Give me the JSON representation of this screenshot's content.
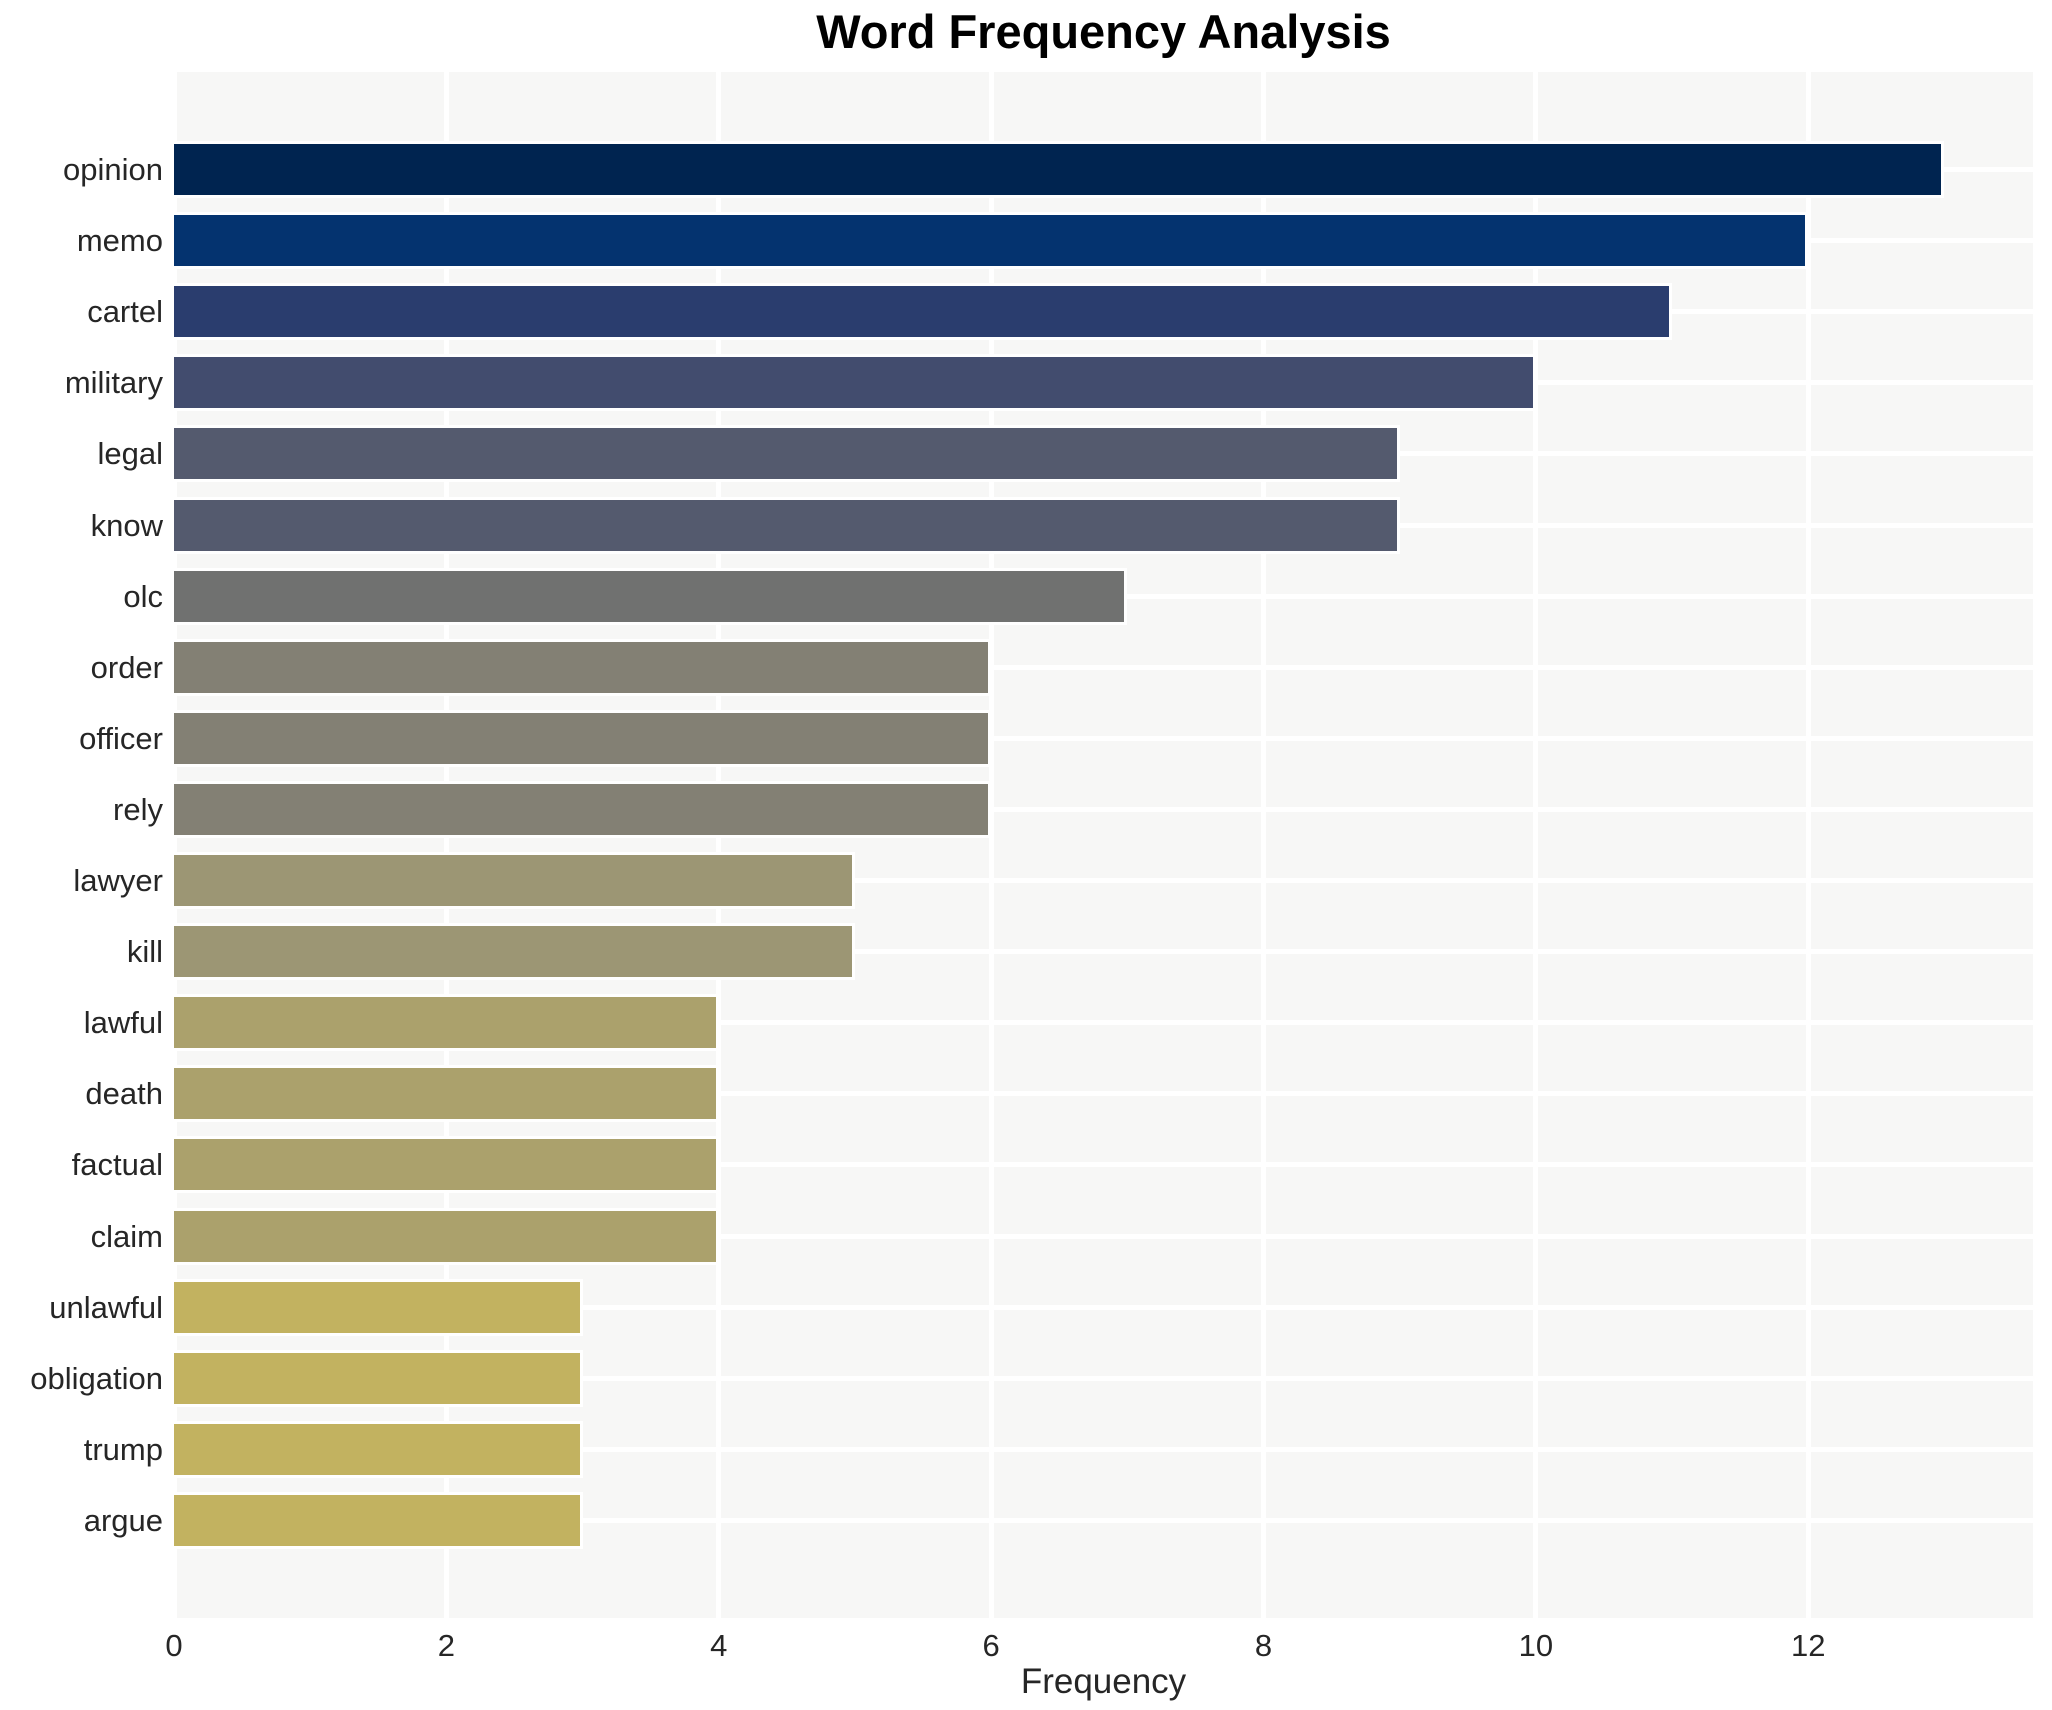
{
  "title": "Word Frequency Analysis",
  "chart_data": {
    "type": "bar",
    "orientation": "horizontal",
    "title": "Word Frequency Analysis",
    "xlabel": "Frequency",
    "ylabel": "",
    "categories": [
      "opinion",
      "memo",
      "cartel",
      "military",
      "legal",
      "know",
      "olc",
      "order",
      "officer",
      "rely",
      "lawyer",
      "kill",
      "lawful",
      "death",
      "factual",
      "claim",
      "unlawful",
      "obligation",
      "trump",
      "argue"
    ],
    "values": [
      13,
      12,
      11,
      10,
      9,
      9,
      7,
      6,
      6,
      6,
      5,
      5,
      4,
      4,
      4,
      4,
      3,
      3,
      3,
      3
    ],
    "bar_colors": [
      "#002450",
      "#04336f",
      "#2a3d6e",
      "#424c6e",
      "#545a6e",
      "#545a6e",
      "#707170",
      "#838074",
      "#838074",
      "#838074",
      "#9c9674",
      "#9c9674",
      "#aba16c",
      "#aba16c",
      "#aba16c",
      "#aba16c",
      "#c2b260",
      "#c2b260",
      "#c2b260",
      "#c2b260"
    ],
    "x_ticks": [
      0,
      2,
      4,
      6,
      8,
      10,
      12
    ],
    "xlim": [
      0,
      13.65
    ],
    "legend": "none",
    "grid": "on",
    "colors": {
      "panel_background": "#f7f7f6",
      "gridline": "#ffffff",
      "tick_text": "#262626",
      "title_text": "#000000"
    }
  }
}
